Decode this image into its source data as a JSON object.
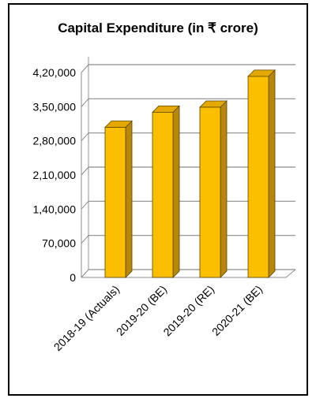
{
  "chart_data": {
    "type": "bar",
    "title": "Capital Expenditure (in ₹ crore)",
    "categories": [
      "2018-19 (Actuals)",
      "2019-20 (BE)",
      "2019-20 (RE)",
      "2020-21 (BE)"
    ],
    "values": [
      307714,
      338569,
      348907,
      412085
    ],
    "yticks": [
      "0",
      "70,000",
      "1,40,000",
      "2,10,000",
      "2,80,000",
      "3,50,000",
      "4,20,000"
    ],
    "ylim": [
      0,
      420000
    ],
    "grid": true,
    "legend": "none",
    "colors": {
      "bar_front": "#FBBF00",
      "bar_side": "#B8860B",
      "bar_top": "#E5A800",
      "bar_edge": "#5A4600",
      "grid": "#8C8C8C"
    }
  }
}
